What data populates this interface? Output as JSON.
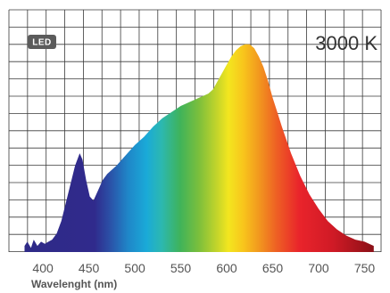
{
  "chart_data": {
    "type": "area",
    "badge": "LED",
    "cct_label": "3000 K",
    "xlabel": "Wavelenght (nm)",
    "ylabel": "",
    "xlim": [
      363,
      768
    ],
    "ylim": [
      0,
      1
    ],
    "x_ticks": [
      400,
      450,
      500,
      550,
      600,
      650,
      700,
      750
    ],
    "x_tick_labels": [
      "400",
      "450",
      "500",
      "550",
      "600",
      "650",
      "700",
      "750"
    ],
    "grid": true,
    "fill": "visible-spectrum gradient",
    "x": [
      380,
      383,
      387,
      390,
      394,
      398,
      402,
      406,
      410,
      415,
      420,
      425,
      430,
      435,
      440,
      443,
      447,
      451,
      455,
      460,
      465,
      470,
      480,
      490,
      500,
      510,
      520,
      530,
      540,
      550,
      560,
      570,
      580,
      585,
      590,
      595,
      600,
      605,
      610,
      615,
      620,
      625,
      630,
      635,
      640,
      645,
      650,
      655,
      660,
      670,
      680,
      690,
      700,
      710,
      720,
      730,
      740,
      750,
      755,
      760
    ],
    "values": [
      0.03,
      0.05,
      0.02,
      0.06,
      0.03,
      0.05,
      0.04,
      0.05,
      0.06,
      0.09,
      0.15,
      0.24,
      0.33,
      0.42,
      0.48,
      0.45,
      0.35,
      0.27,
      0.25,
      0.3,
      0.35,
      0.38,
      0.42,
      0.47,
      0.52,
      0.56,
      0.61,
      0.65,
      0.68,
      0.71,
      0.73,
      0.75,
      0.77,
      0.79,
      0.83,
      0.87,
      0.91,
      0.95,
      0.98,
      1.0,
      1.01,
      1.01,
      0.99,
      0.95,
      0.9,
      0.83,
      0.75,
      0.68,
      0.61,
      0.48,
      0.37,
      0.28,
      0.21,
      0.15,
      0.11,
      0.08,
      0.06,
      0.05,
      0.04,
      0.03
    ]
  }
}
